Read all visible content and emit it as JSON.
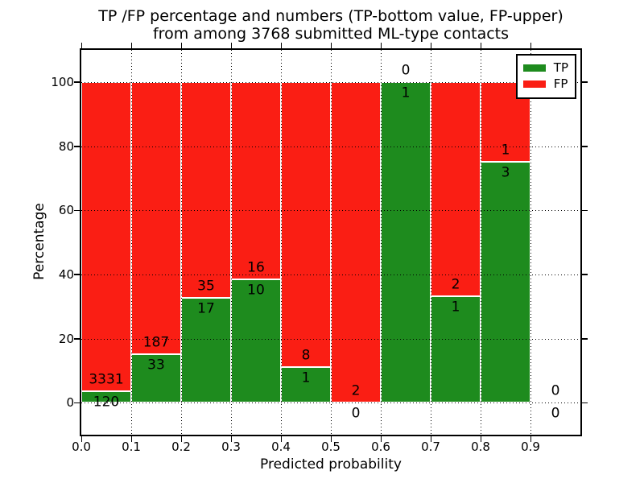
{
  "chart_data": {
    "type": "bar",
    "subtype": "stacked-percentage-histogram",
    "title_line1": "TP /FP percentage and numbers (TP-bottom value, FP-upper)",
    "title_line2": "from among 3768 submitted ML-type contacts",
    "xlabel": "Predicted probability",
    "ylabel": "Percentage",
    "xlim": [
      0.0,
      1.0
    ],
    "ylim": [
      -10,
      110
    ],
    "grid": "dotted",
    "x_ticks": {
      "values": [
        0.0,
        0.1,
        0.2,
        0.3,
        0.4,
        0.5,
        0.6,
        0.7,
        0.8,
        0.9
      ],
      "labels": [
        "0.0",
        "0.1",
        "0.2",
        "0.3",
        "0.4",
        "0.5",
        "0.6",
        "0.7",
        "0.8",
        "0.9"
      ]
    },
    "y_ticks": {
      "values": [
        0,
        20,
        40,
        60,
        80,
        100
      ],
      "labels": [
        "0",
        "20",
        "40",
        "60",
        "80",
        "100"
      ]
    },
    "colors": {
      "tp": "#1e8b1e",
      "fp": "#fa1e14",
      "text": "#000000",
      "background": "#ffffff"
    },
    "legend": {
      "position": "upper-right",
      "items": [
        {
          "label": "TP",
          "color": "#1e8b1e"
        },
        {
          "label": "FP",
          "color": "#fa1e14"
        }
      ]
    },
    "bins": [
      {
        "range": [
          0.0,
          0.1
        ],
        "tp_count": 120,
        "fp_count": 3331,
        "tp_pct": 3.5,
        "fp_pct": 96.5
      },
      {
        "range": [
          0.1,
          0.2
        ],
        "tp_count": 33,
        "fp_count": 187,
        "tp_pct": 15.0,
        "fp_pct": 85.0
      },
      {
        "range": [
          0.2,
          0.3
        ],
        "tp_count": 17,
        "fp_count": 35,
        "tp_pct": 32.7,
        "fp_pct": 67.3
      },
      {
        "range": [
          0.3,
          0.4
        ],
        "tp_count": 10,
        "fp_count": 16,
        "tp_pct": 38.5,
        "fp_pct": 61.5
      },
      {
        "range": [
          0.4,
          0.5
        ],
        "tp_count": 1,
        "fp_count": 8,
        "tp_pct": 11.1,
        "fp_pct": 88.9
      },
      {
        "range": [
          0.5,
          0.6
        ],
        "tp_count": 0,
        "fp_count": 2,
        "tp_pct": 0.0,
        "fp_pct": 100.0
      },
      {
        "range": [
          0.6,
          0.7
        ],
        "tp_count": 1,
        "fp_count": 0,
        "tp_pct": 100.0,
        "fp_pct": 0.0
      },
      {
        "range": [
          0.7,
          0.8
        ],
        "tp_count": 1,
        "fp_count": 2,
        "tp_pct": 33.3,
        "fp_pct": 66.7
      },
      {
        "range": [
          0.8,
          0.9
        ],
        "tp_count": 3,
        "fp_count": 1,
        "tp_pct": 75.0,
        "fp_pct": 25.0
      },
      {
        "range": [
          0.9,
          1.0
        ],
        "tp_count": 0,
        "fp_count": 0,
        "tp_pct": 0.0,
        "fp_pct": 0.0
      }
    ]
  }
}
